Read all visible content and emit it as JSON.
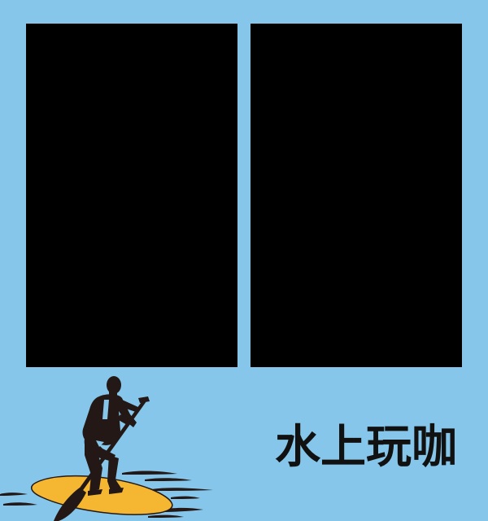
{
  "title": "水上玩咖",
  "photo_slots": [
    {
      "position": "left"
    },
    {
      "position": "right"
    }
  ],
  "colors": {
    "background": "#86c6ea",
    "photo_slot": "#000000",
    "title_text": "#111111",
    "board": "#f5b731",
    "silhouette": "#231815",
    "water_lines": "#231815"
  },
  "icons": {
    "illustration": "paddleboarder-icon"
  }
}
